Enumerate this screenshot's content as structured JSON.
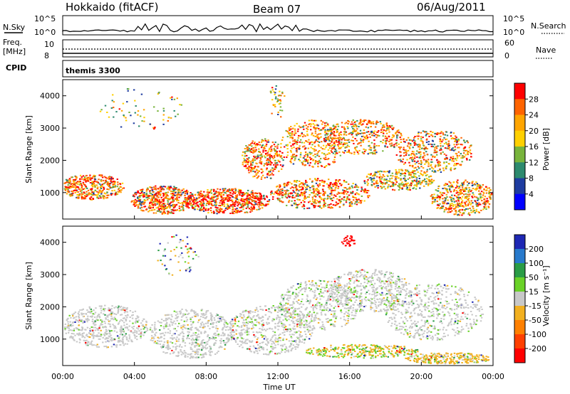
{
  "header": {
    "station": "Hokkaido (fitACF)",
    "beam": "Beam 07",
    "date": "06/Aug/2011"
  },
  "labels": {
    "nsky": "N.Sky",
    "nsearch": "N.Search",
    "freq_line1": "Freq.",
    "freq_line2": "[MHz]",
    "cpid": "CPID",
    "nave": "Nave",
    "cpid_value": "themis 3300",
    "nsky_ticks": [
      "10^5",
      "10^0"
    ],
    "nsearch_ticks": [
      "10^5",
      "10^0"
    ],
    "freq_ticks": [
      "10",
      "8"
    ],
    "nave_ticks": [
      "60",
      "0"
    ]
  },
  "chart_data": [
    {
      "type": "heatmap",
      "panel": "power",
      "ylabel": "Slant Range [km]",
      "xlabel": "",
      "ylim": [
        180,
        4500
      ],
      "xlim_hours": [
        0,
        24
      ],
      "x_ticks": [
        "00:00",
        "04:00",
        "08:00",
        "12:00",
        "16:00",
        "20:00",
        "00:00"
      ],
      "y_ticks": [
        1000,
        2000,
        3000,
        4000
      ],
      "colorbar": {
        "label": "Power [dB]",
        "ticks": [
          28,
          24,
          20,
          16,
          12,
          8,
          4
        ],
        "colors": [
          "#ff0000",
          "#ff6400",
          "#ffa500",
          "#ffd000",
          "#78b43c",
          "#2d8a6e",
          "#1e3ca0",
          "#0000ff"
        ]
      }
    },
    {
      "type": "heatmap",
      "panel": "velocity",
      "ylabel": "Slant Range [km]",
      "xlabel": "Time UT",
      "ylim": [
        180,
        4500
      ],
      "xlim_hours": [
        0,
        24
      ],
      "x_ticks": [
        "00:00",
        "04:00",
        "08:00",
        "12:00",
        "16:00",
        "20:00",
        "00:00"
      ],
      "y_ticks": [
        1000,
        2000,
        3000,
        4000
      ],
      "colorbar": {
        "label": "Velocity [m s⁻¹]",
        "ticks": [
          200,
          100,
          50,
          15,
          -15,
          -50,
          -100,
          -200
        ],
        "colors": [
          "#1e28b4",
          "#287acc",
          "#2a9c46",
          "#6ad228",
          "#c8c8c8",
          "#f2b020",
          "#ff8000",
          "#ff4000",
          "#ff0000"
        ]
      }
    }
  ]
}
